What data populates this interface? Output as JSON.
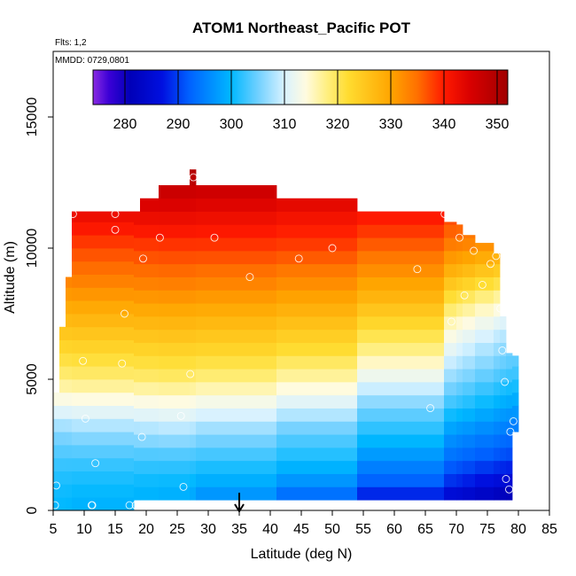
{
  "figure": {
    "title": "ATOM1 Northeast_Pacific POT",
    "flights_label": "Flts: 1,2",
    "dates_label": "MMDD: 0729,0801"
  },
  "chart_data": {
    "type": "heatmap",
    "title": "ATOM1 Northeast_Pacific POT",
    "xlabel": "Latitude (deg N)",
    "ylabel": "Altitude (m)",
    "xlim": [
      5,
      85
    ],
    "ylim": [
      0,
      17500
    ],
    "x_ticks": [
      5,
      10,
      15,
      20,
      25,
      30,
      35,
      40,
      45,
      50,
      55,
      60,
      65,
      70,
      75,
      80,
      85
    ],
    "y_ticks": [
      0,
      5000,
      10000,
      15000
    ],
    "colorbar": {
      "range": [
        274,
        352
      ],
      "ticks": [
        280,
        290,
        300,
        310,
        320,
        330,
        340,
        350
      ],
      "stops": [
        {
          "value": 274,
          "color": "#8a2be2"
        },
        {
          "value": 277,
          "color": "#3b00d6"
        },
        {
          "value": 281,
          "color": "#0000b8"
        },
        {
          "value": 287,
          "color": "#0010e0"
        },
        {
          "value": 292,
          "color": "#0060ff"
        },
        {
          "value": 300,
          "color": "#00b8ff"
        },
        {
          "value": 305,
          "color": "#70d0ff"
        },
        {
          "value": 310,
          "color": "#d8f2ff"
        },
        {
          "value": 314,
          "color": "#fffbe0"
        },
        {
          "value": 318,
          "color": "#ffef80"
        },
        {
          "value": 322,
          "color": "#ffdc30"
        },
        {
          "value": 330,
          "color": "#ffa500"
        },
        {
          "value": 335,
          "color": "#ff7000"
        },
        {
          "value": 340,
          "color": "#ff1a00"
        },
        {
          "value": 345,
          "color": "#d80000"
        },
        {
          "value": 352,
          "color": "#a00000"
        }
      ]
    },
    "arrow_marker_latitude": 35,
    "field_profiles": [
      {
        "lat": 5,
        "points": [
          [
            0,
            300
          ],
          [
            1000,
            301
          ],
          [
            2000,
            303
          ],
          [
            3000,
            306
          ],
          [
            4000,
            312
          ],
          [
            5000,
            318
          ],
          [
            6000,
            322
          ],
          [
            7000,
            326
          ],
          [
            8000,
            330
          ],
          [
            9000,
            334
          ],
          [
            10000,
            337
          ],
          [
            11000,
            341
          ],
          [
            12000,
            346
          ],
          [
            13000,
            349
          ]
        ]
      },
      {
        "lat": 25,
        "points": [
          [
            0,
            298
          ],
          [
            1000,
            300
          ],
          [
            2000,
            303
          ],
          [
            3000,
            308
          ],
          [
            4000,
            313
          ],
          [
            5000,
            319
          ],
          [
            6000,
            323
          ],
          [
            7000,
            327
          ],
          [
            8000,
            331
          ],
          [
            9000,
            335
          ],
          [
            10000,
            338
          ],
          [
            11000,
            342
          ],
          [
            12000,
            346
          ],
          [
            13000,
            350
          ]
        ]
      },
      {
        "lat": 45,
        "points": [
          [
            0,
            290
          ],
          [
            1000,
            297
          ],
          [
            2000,
            302
          ],
          [
            3000,
            305
          ],
          [
            4000,
            311
          ],
          [
            5000,
            317
          ],
          [
            6000,
            322
          ],
          [
            7000,
            326
          ],
          [
            8000,
            330
          ],
          [
            9000,
            334
          ],
          [
            10000,
            338
          ],
          [
            11000,
            341
          ],
          [
            12000,
            345
          ]
        ]
      },
      {
        "lat": 60,
        "points": [
          [
            0,
            283
          ],
          [
            1000,
            292
          ],
          [
            2000,
            297
          ],
          [
            3000,
            302
          ],
          [
            4000,
            306
          ],
          [
            5000,
            312
          ],
          [
            6000,
            318
          ],
          [
            7000,
            323
          ],
          [
            8000,
            328
          ],
          [
            9000,
            332
          ],
          [
            10000,
            336
          ],
          [
            11000,
            340
          ],
          [
            12000,
            343
          ]
        ]
      },
      {
        "lat": 70,
        "points": [
          [
            0,
            280
          ],
          [
            1000,
            288
          ],
          [
            2000,
            293
          ],
          [
            3000,
            297
          ],
          [
            4000,
            302
          ],
          [
            5000,
            306
          ],
          [
            6000,
            310
          ],
          [
            7000,
            314
          ],
          [
            8000,
            320
          ],
          [
            9000,
            327
          ],
          [
            10000,
            333
          ],
          [
            11000,
            337
          ],
          [
            12000,
            341
          ]
        ]
      },
      {
        "lat": 79,
        "points": [
          [
            0,
            276
          ],
          [
            1000,
            284
          ],
          [
            2000,
            290
          ],
          [
            3000,
            294
          ],
          [
            4000,
            298
          ],
          [
            5000,
            302
          ],
          [
            6000,
            305
          ],
          [
            7000,
            309
          ],
          [
            8000,
            314
          ],
          [
            9000,
            322
          ],
          [
            10000,
            330
          ],
          [
            11000,
            336
          ],
          [
            12000,
            340
          ]
        ]
      }
    ],
    "coverage": [
      {
        "lat_min": 5,
        "lat_max": 6,
        "alt_min": 0,
        "alt_max": 4500
      },
      {
        "lat_min": 6,
        "lat_max": 7,
        "alt_min": 0,
        "alt_max": 7000
      },
      {
        "lat_min": 7,
        "lat_max": 8,
        "alt_min": 0,
        "alt_max": 8900
      },
      {
        "lat_min": 8,
        "lat_max": 18,
        "alt_min": 0,
        "alt_max": 11400
      },
      {
        "lat_min": 18,
        "lat_max": 19,
        "alt_min": 400,
        "alt_max": 11400
      },
      {
        "lat_min": 19,
        "lat_max": 22,
        "alt_min": 400,
        "alt_max": 11900
      },
      {
        "lat_min": 22,
        "lat_max": 27,
        "alt_min": 400,
        "alt_max": 12400
      },
      {
        "lat_min": 27,
        "lat_max": 28,
        "alt_min": 400,
        "alt_max": 13000
      },
      {
        "lat_min": 28,
        "lat_max": 41,
        "alt_min": 400,
        "alt_max": 12400
      },
      {
        "lat_min": 41,
        "lat_max": 54,
        "alt_min": 400,
        "alt_max": 11900
      },
      {
        "lat_min": 54,
        "lat_max": 68,
        "alt_min": 400,
        "alt_max": 11400
      },
      {
        "lat_min": 68,
        "lat_max": 70,
        "alt_min": 400,
        "alt_max": 11000
      },
      {
        "lat_min": 70,
        "lat_max": 71,
        "alt_min": 400,
        "alt_max": 10900
      },
      {
        "lat_min": 71,
        "lat_max": 73,
        "alt_min": 400,
        "alt_max": 10500
      },
      {
        "lat_min": 73,
        "lat_max": 76,
        "alt_min": 400,
        "alt_max": 10200
      },
      {
        "lat_min": 76,
        "lat_max": 77,
        "alt_min": 400,
        "alt_max": 9800
      },
      {
        "lat_min": 77,
        "lat_max": 78,
        "alt_min": 400,
        "alt_max": 7400
      },
      {
        "lat_min": 78,
        "lat_max": 79,
        "alt_min": 400,
        "alt_max": 6000
      },
      {
        "lat_min": 79,
        "lat_max": 80,
        "alt_min": 3000,
        "alt_max": 5900
      }
    ],
    "observation_points": [
      [
        5.3,
        4800
      ],
      [
        5.5,
        950
      ],
      [
        5.3,
        200
      ],
      [
        8.2,
        11300
      ],
      [
        9.8,
        5700
      ],
      [
        10.2,
        3500
      ],
      [
        11.3,
        200
      ],
      [
        11.2,
        200
      ],
      [
        11.8,
        1800
      ],
      [
        15.0,
        11300
      ],
      [
        15.0,
        10700
      ],
      [
        16.1,
        5600
      ],
      [
        16.5,
        7500
      ],
      [
        17.3,
        200
      ],
      [
        18.3,
        200
      ],
      [
        19.3,
        2800
      ],
      [
        19.5,
        9600
      ],
      [
        22.2,
        10400
      ],
      [
        25.6,
        3600
      ],
      [
        26.0,
        900
      ],
      [
        27.1,
        5200
      ],
      [
        27.6,
        12700
      ],
      [
        31.0,
        10400
      ],
      [
        36.7,
        8900
      ],
      [
        44.6,
        9600
      ],
      [
        50.0,
        10000
      ],
      [
        63.7,
        9200
      ],
      [
        65.8,
        3900
      ],
      [
        68.1,
        11300
      ],
      [
        69.2,
        7200
      ],
      [
        70.5,
        10400
      ],
      [
        71.3,
        8200
      ],
      [
        72.8,
        9900
      ],
      [
        74.2,
        8600
      ],
      [
        75.5,
        9400
      ],
      [
        76.4,
        9700
      ],
      [
        77.1,
        7700
      ],
      [
        77.4,
        6100
      ],
      [
        77.8,
        4900
      ],
      [
        78.0,
        1200
      ],
      [
        78.5,
        800
      ],
      [
        78.7,
        3000
      ],
      [
        79.2,
        3400
      ]
    ]
  }
}
